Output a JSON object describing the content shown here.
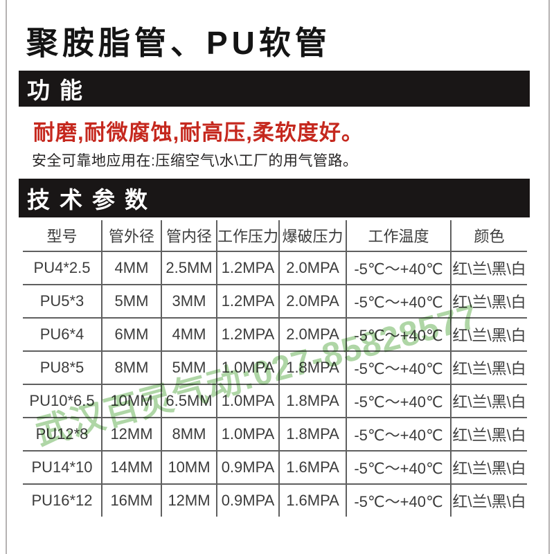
{
  "page": {
    "title": "聚胺脂管、PU软管",
    "section_function": {
      "heading": "功能",
      "highlight": "耐磨,耐微腐蚀,耐高压,柔软度好。",
      "description": "安全可靠地应用在:压缩空气\\水\\工厂的用气管路。"
    },
    "section_specs": {
      "heading": "技术参数"
    },
    "table": {
      "headers": [
        "型号",
        "管外径",
        "管内径",
        "工作压力",
        "爆破压力",
        "工作温度",
        "颜色"
      ],
      "rows": [
        [
          "PU4*2.5",
          "4MM",
          "2.5MM",
          "1.2MPA",
          "2.0MPA",
          "-5℃～+40℃",
          "红\\兰\\黑\\白"
        ],
        [
          "PU5*3",
          "5MM",
          "3MM",
          "1.2MPA",
          "2.0MPA",
          "-5℃～+40℃",
          "红\\兰\\黑\\白"
        ],
        [
          "PU6*4",
          "6MM",
          "4MM",
          "1.2MPA",
          "2.0MPA",
          "-5℃～+40℃",
          "红\\兰\\黑\\白"
        ],
        [
          "PU8*5",
          "8MM",
          "5MM",
          "1.0MPA",
          "1.8MPA",
          "-5℃～+40℃",
          "红\\兰\\黑\\白"
        ],
        [
          "PU10*6.5",
          "10MM",
          "6.5MM",
          "1.0MPA",
          "1.8MPA",
          "-5℃～+40℃",
          "红\\兰\\黑\\白"
        ],
        [
          "PU12*8",
          "12MM",
          "8MM",
          "1.0MPA",
          "1.8MPA",
          "-5℃～+40℃",
          "红\\兰\\黑\\白"
        ],
        [
          "PU14*10",
          "14MM",
          "10MM",
          "0.9MPA",
          "1.6MPA",
          "-5℃～+40℃",
          "红\\兰\\黑\\白"
        ],
        [
          "PU16*12",
          "16MM",
          "12MM",
          "0.9MPA",
          "1.6MPA",
          "-5℃～+40℃",
          "红\\兰\\黑\\白"
        ]
      ]
    },
    "watermark": "武汉百灵气动:027-85828577",
    "colors": {
      "accent_red": "#c5281e",
      "bar_black": "#191616",
      "table_line_gray": "#5f5f5f",
      "watermark_green": "#a6d29c"
    }
  }
}
